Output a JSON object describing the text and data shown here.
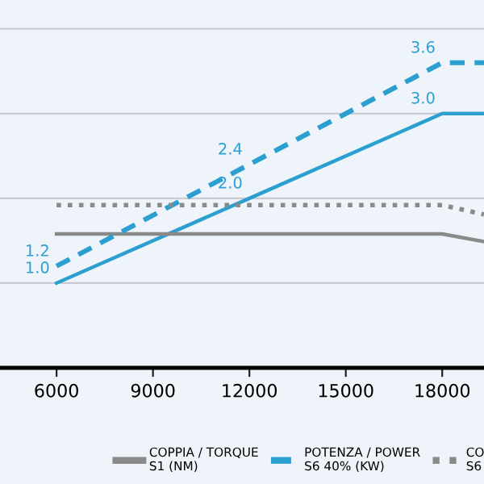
{
  "chart_data": {
    "type": "line",
    "xlim": [
      4240,
      19300
    ],
    "ylim": [
      0,
      4.34
    ],
    "xticks": [
      6000,
      9000,
      12000,
      15000,
      18000
    ],
    "yticks": [
      {
        "value": 1,
        "label": null
      },
      {
        "value": 2,
        "label": null
      },
      {
        "value": 3,
        "label": null
      },
      {
        "value": 4,
        "label": null
      }
    ],
    "tick_labels": "x",
    "grid": "y",
    "legend": "bottom",
    "marker": "none",
    "series": [
      {
        "color": "#2a9fd0",
        "line_style": "solid",
        "x": [
          6000,
          12000,
          18000,
          19300
        ],
        "values": [
          1.0,
          2.0,
          3.0,
          3.0
        ],
        "value_labels": [
          "1.0",
          "2.0",
          "3.0",
          null
        ]
      },
      {
        "name": "COPPIA / TORQUE\nS1 (NM)",
        "color": "#8a8a8a",
        "line_style": "solid",
        "x": [
          6000,
          18000,
          19300
        ],
        "values": [
          1.58,
          1.58,
          1.49
        ]
      },
      {
        "name": "POTENZA / POWER\nS6 40% (KW)",
        "color": "#2a9fd0",
        "line_style": "dashed",
        "x": [
          6000,
          12000,
          18000,
          19300
        ],
        "values": [
          1.2,
          2.4,
          3.6,
          3.6
        ],
        "value_labels": [
          "1.2",
          "2.4",
          "3.6",
          null
        ]
      },
      {
        "name": "CO\nS6",
        "color": "#8a8a8a",
        "line_style": "dotted",
        "x": [
          6000,
          18000,
          19300
        ],
        "values": [
          1.92,
          1.92,
          1.81
        ]
      }
    ]
  }
}
